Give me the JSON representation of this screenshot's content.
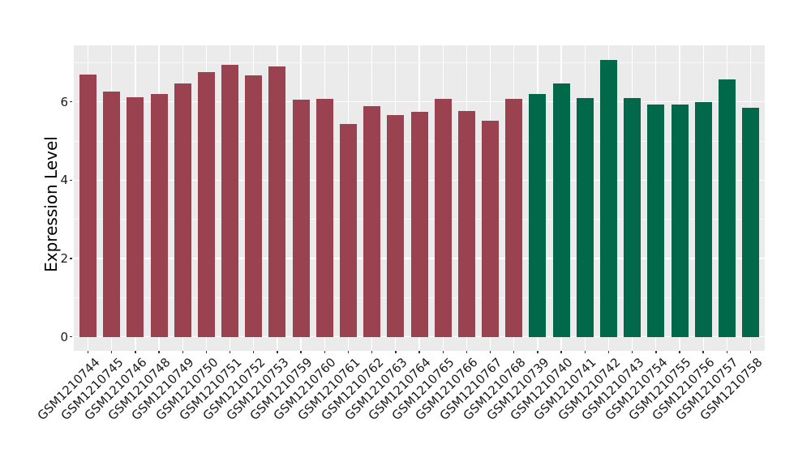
{
  "chart_data": {
    "type": "bar",
    "title": "",
    "xlabel": "",
    "ylabel": "Expression Level",
    "ylim": [
      0,
      7.44
    ],
    "yticks": [
      0,
      2,
      4,
      6
    ],
    "y_minor_gridlines": [
      1,
      3,
      5,
      7
    ],
    "grid": "on",
    "legend": "none",
    "panel_bg": "#EBEBEB",
    "gridline_color": "#FFFFFF",
    "tick_color": "#333333",
    "colors": {
      "maroon": "#9B4250",
      "green": "#01684A"
    },
    "bars": [
      {
        "label": "GSM1210744",
        "value": 6.7,
        "group": "maroon"
      },
      {
        "label": "GSM1210745",
        "value": 6.27,
        "group": "maroon"
      },
      {
        "label": "GSM1210746",
        "value": 6.11,
        "group": "maroon"
      },
      {
        "label": "GSM1210748",
        "value": 6.2,
        "group": "maroon"
      },
      {
        "label": "GSM1210749",
        "value": 6.46,
        "group": "maroon"
      },
      {
        "label": "GSM1210750",
        "value": 6.76,
        "group": "maroon"
      },
      {
        "label": "GSM1210751",
        "value": 6.95,
        "group": "maroon"
      },
      {
        "label": "GSM1210752",
        "value": 6.68,
        "group": "maroon"
      },
      {
        "label": "GSM1210753",
        "value": 6.91,
        "group": "maroon"
      },
      {
        "label": "GSM1210759",
        "value": 6.05,
        "group": "maroon"
      },
      {
        "label": "GSM1210760",
        "value": 6.07,
        "group": "maroon"
      },
      {
        "label": "GSM1210761",
        "value": 5.43,
        "group": "maroon"
      },
      {
        "label": "GSM1210762",
        "value": 5.9,
        "group": "maroon"
      },
      {
        "label": "GSM1210763",
        "value": 5.66,
        "group": "maroon"
      },
      {
        "label": "GSM1210764",
        "value": 5.74,
        "group": "maroon"
      },
      {
        "label": "GSM1210765",
        "value": 6.07,
        "group": "maroon"
      },
      {
        "label": "GSM1210766",
        "value": 5.77,
        "group": "maroon"
      },
      {
        "label": "GSM1210767",
        "value": 5.51,
        "group": "maroon"
      },
      {
        "label": "GSM1210768",
        "value": 6.08,
        "group": "maroon"
      },
      {
        "label": "GSM1210739",
        "value": 6.2,
        "group": "green"
      },
      {
        "label": "GSM1210740",
        "value": 6.47,
        "group": "green"
      },
      {
        "label": "GSM1210741",
        "value": 6.09,
        "group": "green"
      },
      {
        "label": "GSM1210742",
        "value": 7.07,
        "group": "green"
      },
      {
        "label": "GSM1210743",
        "value": 6.09,
        "group": "green"
      },
      {
        "label": "GSM1210754",
        "value": 5.93,
        "group": "green"
      },
      {
        "label": "GSM1210755",
        "value": 5.94,
        "group": "green"
      },
      {
        "label": "GSM1210756",
        "value": 5.99,
        "group": "green"
      },
      {
        "label": "GSM1210757",
        "value": 6.57,
        "group": "green"
      },
      {
        "label": "GSM1210758",
        "value": 5.85,
        "group": "green"
      }
    ]
  }
}
